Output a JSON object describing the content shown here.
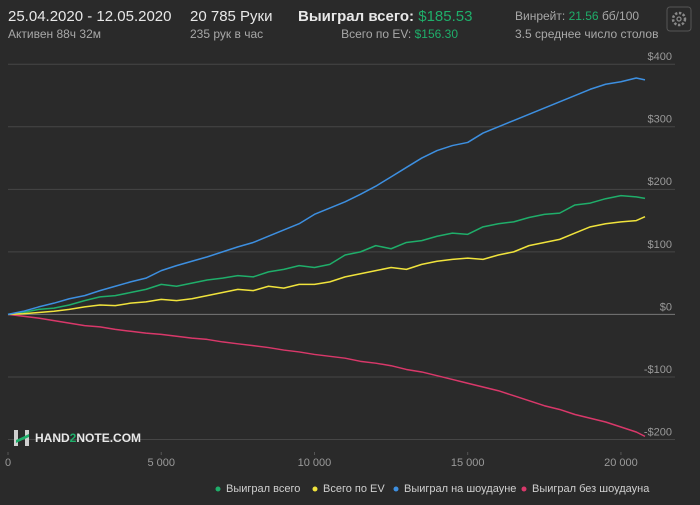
{
  "header": {
    "date_range": "25.04.2020 - 12.05.2020",
    "active": "Активен 88ч 32м",
    "hands": "20 785 Руки",
    "hands_per_hour": "235 рук в час",
    "won_label": "Выиграл всего:",
    "won_value": "$185.53",
    "ev_label": "Всего по EV:",
    "ev_value": "$156.30",
    "winrate_label": "Винрейт:",
    "winrate_value": "21.56",
    "winrate_unit": "бб/100",
    "tables": "3.5 среднее число столов"
  },
  "brand": {
    "part1": "HAND",
    "part2": "2",
    "part3": "NOTE.COM"
  },
  "chart_data": {
    "type": "line",
    "x": [
      0,
      500,
      1000,
      1500,
      2000,
      2500,
      3000,
      3500,
      4000,
      4500,
      5000,
      5500,
      6000,
      6500,
      7000,
      7500,
      8000,
      8500,
      9000,
      9500,
      10000,
      10500,
      11000,
      11500,
      12000,
      12500,
      13000,
      13500,
      14000,
      14500,
      15000,
      15500,
      16000,
      16500,
      17000,
      17500,
      18000,
      18500,
      19000,
      19500,
      20000,
      20500,
      20785
    ],
    "xlim": [
      0,
      20785
    ],
    "xticks": [
      0,
      {
        "value": 5000,
        "label": "5 000"
      },
      {
        "value": 10000,
        "label": "10 000"
      },
      {
        "value": 15000,
        "label": "15 000"
      },
      {
        "value": 20000,
        "label": "20 000"
      }
    ],
    "ylim": [
      -220,
      410
    ],
    "yticks": [
      {
        "value": -200,
        "label": "-$200"
      },
      {
        "value": -100,
        "label": "-$100"
      },
      {
        "value": 0,
        "label": "$0"
      },
      {
        "value": 100,
        "label": "$100"
      },
      {
        "value": 200,
        "label": "$200"
      },
      {
        "value": 300,
        "label": "$300"
      },
      {
        "value": 400,
        "label": "$400"
      }
    ],
    "grid": true,
    "legend": "bottom-right",
    "series": [
      {
        "name": "Выиграл всего",
        "color": "#1fae6a",
        "values": [
          0,
          3,
          8,
          10,
          15,
          22,
          28,
          30,
          35,
          40,
          48,
          45,
          50,
          55,
          58,
          62,
          60,
          68,
          72,
          78,
          75,
          80,
          95,
          100,
          110,
          105,
          115,
          118,
          125,
          130,
          128,
          140,
          145,
          148,
          155,
          160,
          162,
          175,
          178,
          185,
          190,
          188,
          185.53
        ]
      },
      {
        "name": "Всего по EV",
        "color": "#f0e33c",
        "values": [
          0,
          1,
          3,
          5,
          8,
          12,
          15,
          14,
          18,
          20,
          24,
          22,
          25,
          30,
          35,
          40,
          38,
          45,
          42,
          48,
          48,
          52,
          60,
          65,
          70,
          75,
          72,
          80,
          85,
          88,
          90,
          88,
          95,
          100,
          110,
          115,
          120,
          130,
          140,
          145,
          148,
          150,
          156.3
        ]
      },
      {
        "name": "Выиграл на шоудауне",
        "color": "#3d8fe0",
        "values": [
          0,
          5,
          12,
          18,
          25,
          30,
          38,
          45,
          52,
          58,
          70,
          78,
          85,
          92,
          100,
          108,
          115,
          125,
          135,
          145,
          160,
          170,
          180,
          192,
          205,
          220,
          235,
          250,
          262,
          270,
          275,
          290,
          300,
          310,
          320,
          330,
          340,
          350,
          360,
          368,
          372,
          378,
          375
        ]
      },
      {
        "name": "Выиграл без шоудауна",
        "color": "#d9386a",
        "values": [
          0,
          -3,
          -6,
          -10,
          -14,
          -18,
          -20,
          -24,
          -27,
          -30,
          -32,
          -35,
          -38,
          -40,
          -44,
          -47,
          -50,
          -53,
          -57,
          -60,
          -64,
          -67,
          -70,
          -75,
          -78,
          -82,
          -88,
          -92,
          -98,
          -104,
          -110,
          -116,
          -122,
          -130,
          -138,
          -146,
          -152,
          -160,
          -166,
          -172,
          -180,
          -188,
          -195
        ]
      }
    ]
  }
}
